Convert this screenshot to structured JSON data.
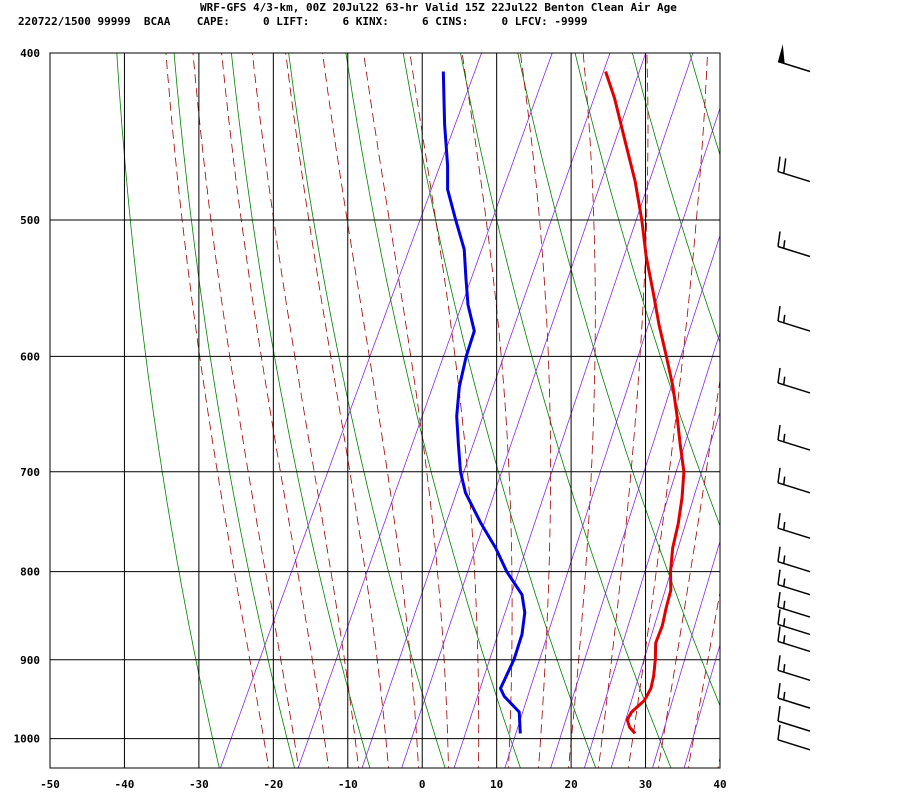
{
  "header": {
    "line1": "WRF-GFS 4/3-km, 00Z 20Jul22 63-hr Valid 15Z 22Jul22 Benton Clean Air Age",
    "line2": "220722/1500 99999  BCAA    CAPE:     0 LIFT:     6 KINX:     6 CINS:     0 LFCV: -9999"
  },
  "colors": {
    "temperature": "#e00000",
    "dewpoint": "#0000e0",
    "dry_adiabat": "#008000",
    "moist_adiabat": "#a00000",
    "mixing_ratio": "#8a2be2",
    "grid": "#000000",
    "wind_barb": "#000000"
  },
  "chart_data": {
    "type": "skew-t",
    "xlim": [
      -50,
      40
    ],
    "ylim": [
      1040,
      400
    ],
    "y_scale": "log-pressure",
    "grid": true,
    "x_ticks": [
      "-50",
      "-40",
      "-30",
      "-20",
      "-10",
      "0",
      "10",
      "20",
      "30",
      "40"
    ],
    "y_ticks": [
      "400",
      "500",
      "600",
      "700",
      "800",
      "900",
      "1000"
    ],
    "series": [
      {
        "key": "temperature",
        "pressure": [
          993,
          985,
          975,
          965,
          950,
          935,
          920,
          900,
          880,
          860,
          840,
          820,
          800,
          775,
          750,
          725,
          700,
          675,
          650,
          625,
          600,
          575,
          550,
          525,
          500,
          475,
          450,
          425,
          410
        ],
        "value": [
          26.4,
          25.3,
          24.5,
          24.6,
          25.6,
          25.7,
          25.3,
          24.5,
          23.5,
          23.3,
          22.7,
          22.2,
          21.0,
          19.8,
          19.0,
          17.9,
          16.5,
          14.3,
          12.1,
          9.7,
          6.9,
          3.9,
          1.0,
          -2.1,
          -5.0,
          -8.3,
          -12.2,
          -16.3,
          -19.2
        ]
      },
      {
        "key": "dewpoint",
        "pressure": [
          993,
          965,
          945,
          935,
          900,
          870,
          845,
          825,
          800,
          775,
          750,
          720,
          700,
          675,
          650,
          625,
          600,
          580,
          560,
          540,
          520,
          500,
          480,
          465,
          440,
          410
        ],
        "value": [
          11.0,
          9.5,
          6.5,
          5.5,
          5.5,
          5.0,
          4.0,
          2.5,
          -1.0,
          -4.0,
          -7.5,
          -11.5,
          -13.5,
          -15.5,
          -17.5,
          -19.0,
          -20.0,
          -20.5,
          -23.0,
          -25.0,
          -27.0,
          -30.0,
          -33.0,
          -34.5,
          -37.5,
          -41.0
        ]
      }
    ],
    "wind_barbs": [
      {
        "pressure": 410,
        "speed": 50
      },
      {
        "pressure": 475,
        "speed": 20
      },
      {
        "pressure": 525,
        "speed": 15
      },
      {
        "pressure": 580,
        "speed": 15
      },
      {
        "pressure": 630,
        "speed": 15
      },
      {
        "pressure": 680,
        "speed": 15
      },
      {
        "pressure": 720,
        "speed": 15
      },
      {
        "pressure": 765,
        "speed": 15
      },
      {
        "pressure": 800,
        "speed": 15
      },
      {
        "pressure": 825,
        "speed": 15
      },
      {
        "pressure": 850,
        "speed": 15
      },
      {
        "pressure": 870,
        "speed": 15
      },
      {
        "pressure": 890,
        "speed": 15
      },
      {
        "pressure": 925,
        "speed": 15
      },
      {
        "pressure": 960,
        "speed": 15
      },
      {
        "pressure": 990,
        "speed": 10
      },
      {
        "pressure": 1015,
        "speed": 10
      }
    ]
  }
}
